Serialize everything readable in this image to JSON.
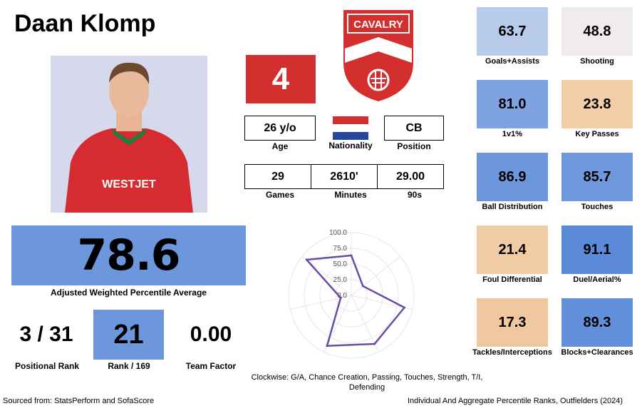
{
  "player": {
    "name": "Daan Klomp",
    "number": "4"
  },
  "club": {
    "crest_text": "CAVALRY",
    "shirt_sponsor": "WESTJET"
  },
  "info": {
    "age": "26 y/o",
    "age_label": "Age",
    "nationality_label": "Nationality",
    "position": "CB",
    "position_label": "Position"
  },
  "season": {
    "games": "29",
    "games_label": "Games",
    "minutes": "2610'",
    "minutes_label": "Minutes",
    "nineties": "29.00",
    "nineties_label": "90s"
  },
  "summary": {
    "score": "78.6",
    "score_label": "Adjusted Weighted Percentile Average",
    "positional_rank": "3 / 31",
    "positional_rank_label": "Positional Rank",
    "rank": "21",
    "rank_label": "Rank / 169",
    "team_factor": "0.00",
    "team_factor_label": "Team Factor"
  },
  "tiles": [
    {
      "value": "63.7",
      "label": "Goals+Assists",
      "color": "#b9cbea"
    },
    {
      "value": "48.8",
      "label": "Shooting",
      "color": "#efeceb"
    },
    {
      "value": "81.0",
      "label": "1v1%",
      "color": "#7fa3e0"
    },
    {
      "value": "23.8",
      "label": "Key Passes",
      "color": "#f1cda8"
    },
    {
      "value": "86.9",
      "label": "Ball Distribution",
      "color": "#6d97dc"
    },
    {
      "value": "85.7",
      "label": "Touches",
      "color": "#6f98dd"
    },
    {
      "value": "21.4",
      "label": "Foul Differential",
      "color": "#f1cba4"
    },
    {
      "value": "91.1",
      "label": "Duel/Aerial%",
      "color": "#5b8bd8"
    },
    {
      "value": "17.3",
      "label": "Tackles/Interceptions",
      "color": "#f0c8a0"
    },
    {
      "value": "89.3",
      "label": "Blocks+Clearances",
      "color": "#6390da"
    }
  ],
  "chart_data": {
    "type": "radar",
    "axes": [
      "G/A",
      "Chance Creation",
      "Passing",
      "Touches",
      "Strength",
      "T/I",
      "Defending"
    ],
    "values": [
      63.7,
      23.8,
      86.9,
      85.7,
      89.3,
      17.3,
      91.1
    ],
    "rlim": [
      0,
      100
    ],
    "tick_labels": [
      "0.0",
      "25.0",
      "50.0",
      "75.0",
      "100.0"
    ],
    "series_color": "#6a4ca8"
  },
  "radar_caption": "Clockwise: G/A, Chance Creation, Passing, Touches, Strength, T/I, Defending",
  "footer": {
    "source": "Sourced from: StatsPerform and SofaScore",
    "title": "Individual And Aggregate Percentile Ranks, Outfielders (2024)"
  }
}
